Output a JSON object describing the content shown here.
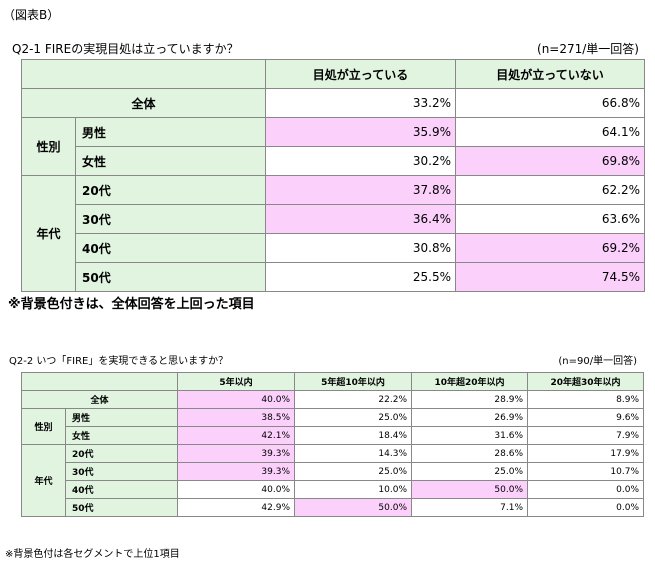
{
  "figure_label": "（図表B）",
  "q1": {
    "title": "Q2-1 FIREの実現目処は立っていますか？",
    "n": "(n=271/単一回答)",
    "headers": [
      "目処が立っている",
      "目処が立っていない"
    ],
    "total_label": "全体",
    "total": [
      "33.2%",
      "66.8%"
    ],
    "gender_label": "性別",
    "gender": [
      {
        "label": "男性",
        "values": [
          "35.9%",
          "64.1%"
        ]
      },
      {
        "label": "女性",
        "values": [
          "30.2%",
          "69.8%"
        ]
      }
    ],
    "age_label": "年代",
    "age": [
      {
        "label": "20代",
        "values": [
          "37.8%",
          "62.2%"
        ]
      },
      {
        "label": "30代",
        "values": [
          "36.4%",
          "63.6%"
        ]
      },
      {
        "label": "40代",
        "values": [
          "30.8%",
          "69.2%"
        ]
      },
      {
        "label": "50代",
        "values": [
          "25.5%",
          "74.5%"
        ]
      }
    ],
    "note": "※背景色付きは、全体回答を上回った項目"
  },
  "q2": {
    "title": "Q2-2 いつ「FIRE」を実現できると思いますか？",
    "n": "(n=90/単一回答)",
    "headers": [
      "5年以内",
      "5年超10年以内",
      "10年超20年以内",
      "20年超30年以内"
    ],
    "total_label": "全体",
    "total": [
      "40.0%",
      "22.2%",
      "28.9%",
      "8.9%"
    ],
    "gender_label": "性別",
    "gender": [
      {
        "label": "男性",
        "values": [
          "38.5%",
          "25.0%",
          "26.9%",
          "9.6%"
        ]
      },
      {
        "label": "女性",
        "values": [
          "42.1%",
          "18.4%",
          "31.6%",
          "7.9%"
        ]
      }
    ],
    "age_label": "年代",
    "age": [
      {
        "label": "20代",
        "values": [
          "39.3%",
          "14.3%",
          "28.6%",
          "17.9%"
        ]
      },
      {
        "label": "30代",
        "values": [
          "39.3%",
          "25.0%",
          "25.0%",
          "10.7%"
        ]
      },
      {
        "label": "40代",
        "values": [
          "40.0%",
          "10.0%",
          "50.0%",
          "0.0%"
        ]
      },
      {
        "label": "50代",
        "values": [
          "42.9%",
          "50.0%",
          "7.1%",
          "0.0%"
        ]
      }
    ],
    "note": "※背景色付は各セグメントで上位1項目"
  },
  "colors": {
    "header_bg": "#e0f4e0",
    "highlight": "#fbd0fb"
  }
}
